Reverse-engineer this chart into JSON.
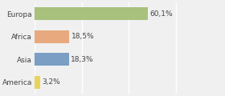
{
  "categories": [
    "Europa",
    "Africa",
    "Asia",
    "America"
  ],
  "values": [
    60.1,
    18.5,
    18.3,
    3.2
  ],
  "labels": [
    "60,1%",
    "18,5%",
    "18,3%",
    "3,2%"
  ],
  "bar_colors": [
    "#a8c17c",
    "#e8a97e",
    "#7b9ec4",
    "#e8d45a"
  ],
  "background_color": "#f0f0f0",
  "xlim": [
    0,
    100
  ],
  "figsize": [
    2.8,
    1.2
  ],
  "dpi": 100,
  "grid_color": "#ffffff",
  "grid_positions": [
    0,
    25,
    50,
    75,
    100
  ]
}
